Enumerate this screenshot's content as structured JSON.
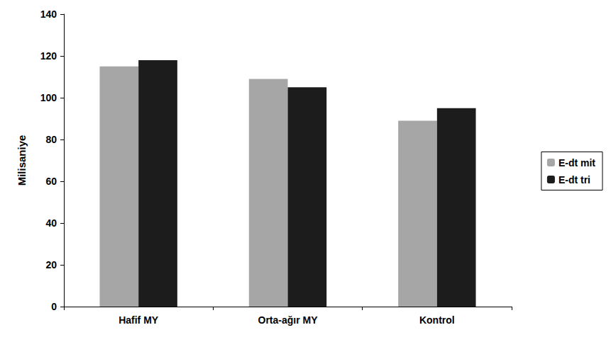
{
  "chart_data": {
    "type": "bar",
    "y_label": "Milisaniye",
    "categories": [
      "Hafif MY",
      "Orta-ağır MY",
      "Kontrol"
    ],
    "series": [
      {
        "name": "E-dt mit",
        "color": "#a6a6a6",
        "values": [
          115,
          109,
          89
        ]
      },
      {
        "name": "E-dt tri",
        "color": "#1c1c1c",
        "values": [
          118,
          105,
          95
        ]
      }
    ],
    "ylim": [
      0,
      140
    ],
    "yticks": [
      0,
      20,
      40,
      60,
      80,
      100,
      120,
      140
    ],
    "grid": false,
    "legend": "right"
  }
}
